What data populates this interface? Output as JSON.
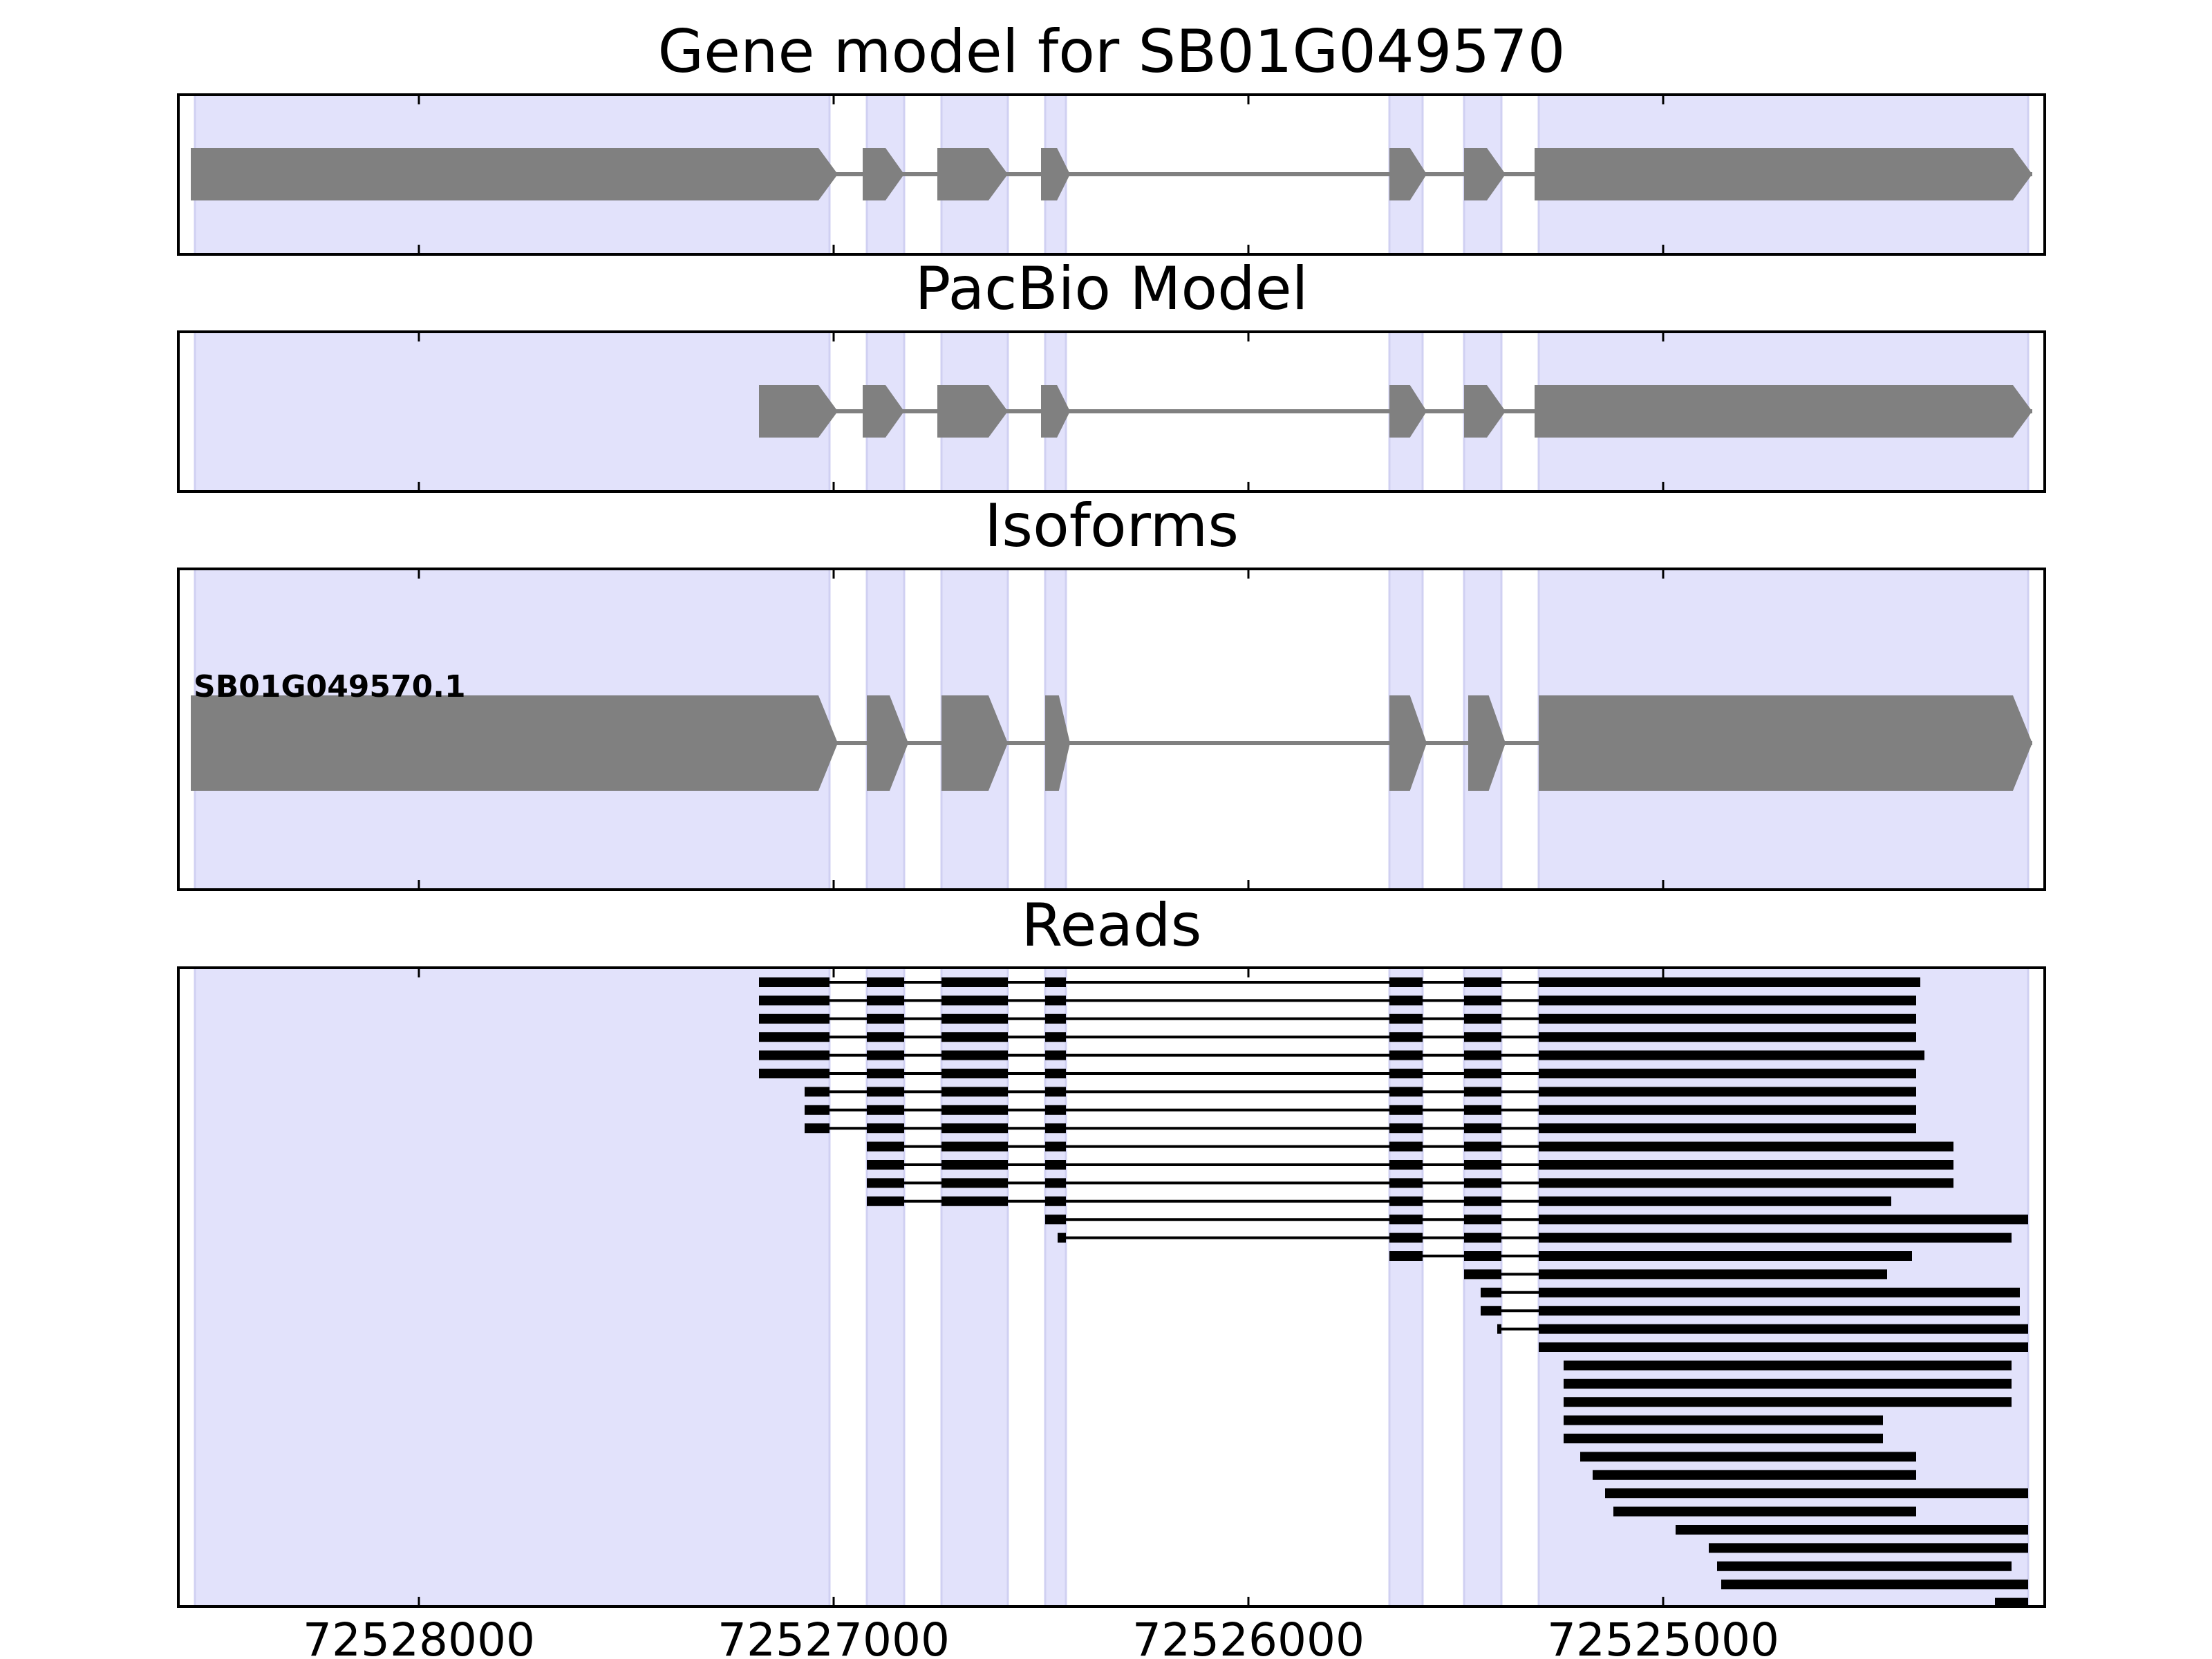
{
  "chart_data": {
    "type": "gene-track",
    "xaxis": {
      "reversed": true,
      "xlim": [
        72528580,
        72524080
      ],
      "ticks": [
        72528000,
        72527000,
        72526000,
        72525000
      ],
      "tick_labels": [
        "72528000",
        "72527000",
        "72526000",
        "72525000"
      ]
    },
    "exon_regions": [
      [
        72528540,
        72527010
      ],
      [
        72526920,
        72526830
      ],
      [
        72526740,
        72526580
      ],
      [
        72526490,
        72526440
      ],
      [
        72525660,
        72525580
      ],
      [
        72525480,
        72525390
      ],
      [
        72525300,
        72524120
      ]
    ],
    "panels": [
      {
        "title": "Gene model for SB01G049570",
        "strand": "-",
        "exons": [
          [
            72528550,
            72526990
          ],
          [
            72526930,
            72526830
          ],
          [
            72526750,
            72526580
          ],
          [
            72526500,
            72526430
          ],
          [
            72525660,
            72525570
          ],
          [
            72525480,
            72525380
          ],
          [
            72525310,
            72524110
          ]
        ],
        "isoform_label": ""
      },
      {
        "title": "PacBio Model",
        "strand": "-",
        "exons": [
          [
            72527180,
            72526990
          ],
          [
            72526930,
            72526830
          ],
          [
            72526750,
            72526580
          ],
          [
            72526500,
            72526430
          ],
          [
            72525660,
            72525570
          ],
          [
            72525480,
            72525380
          ],
          [
            72525310,
            72524110
          ]
        ],
        "isoform_label": ""
      },
      {
        "title": "Isoforms",
        "strand": "-",
        "exons": [
          [
            72528550,
            72526990
          ],
          [
            72526920,
            72526820
          ],
          [
            72526740,
            72526580
          ],
          [
            72526490,
            72526430
          ],
          [
            72525660,
            72525570
          ],
          [
            72525470,
            72525380
          ],
          [
            72525300,
            72524110
          ]
        ],
        "isoform_label": "SB01G049570.1"
      }
    ],
    "reads_panel": {
      "title": "Reads",
      "reads": [
        {
          "start": 72527180,
          "end": 72524380
        },
        {
          "start": 72527180,
          "end": 72524390
        },
        {
          "start": 72527180,
          "end": 72524390
        },
        {
          "start": 72527180,
          "end": 72524390
        },
        {
          "start": 72527180,
          "end": 72524370
        },
        {
          "start": 72527180,
          "end": 72524390
        },
        {
          "start": 72527070,
          "end": 72524390
        },
        {
          "start": 72527070,
          "end": 72524390
        },
        {
          "start": 72527070,
          "end": 72524390
        },
        {
          "start": 72526940,
          "end": 72524300
        },
        {
          "start": 72526940,
          "end": 72524300
        },
        {
          "start": 72526940,
          "end": 72524300
        },
        {
          "start": 72526930,
          "end": 72524450
        },
        {
          "start": 72526500,
          "end": 72524120
        },
        {
          "start": 72526460,
          "end": 72524160
        },
        {
          "start": 72525670,
          "end": 72524400
        },
        {
          "start": 72525480,
          "end": 72524460
        },
        {
          "start": 72525440,
          "end": 72524140
        },
        {
          "start": 72525440,
          "end": 72524140
        },
        {
          "start": 72525400,
          "end": 72524120
        },
        {
          "start": 72525310,
          "end": 72524080
        },
        {
          "start": 72525240,
          "end": 72524160
        },
        {
          "start": 72525240,
          "end": 72524160
        },
        {
          "start": 72525240,
          "end": 72524160
        },
        {
          "start": 72525240,
          "end": 72524470
        },
        {
          "start": 72525240,
          "end": 72524470
        },
        {
          "start": 72525200,
          "end": 72524390
        },
        {
          "start": 72525170,
          "end": 72524390
        },
        {
          "start": 72525140,
          "end": 72524090
        },
        {
          "start": 72525120,
          "end": 72524390
        },
        {
          "start": 72524970,
          "end": 72524080
        },
        {
          "start": 72524890,
          "end": 72524080
        },
        {
          "start": 72524870,
          "end": 72524160
        },
        {
          "start": 72524860,
          "end": 72524080
        },
        {
          "start": 72524200,
          "end": 72524080
        }
      ]
    }
  }
}
